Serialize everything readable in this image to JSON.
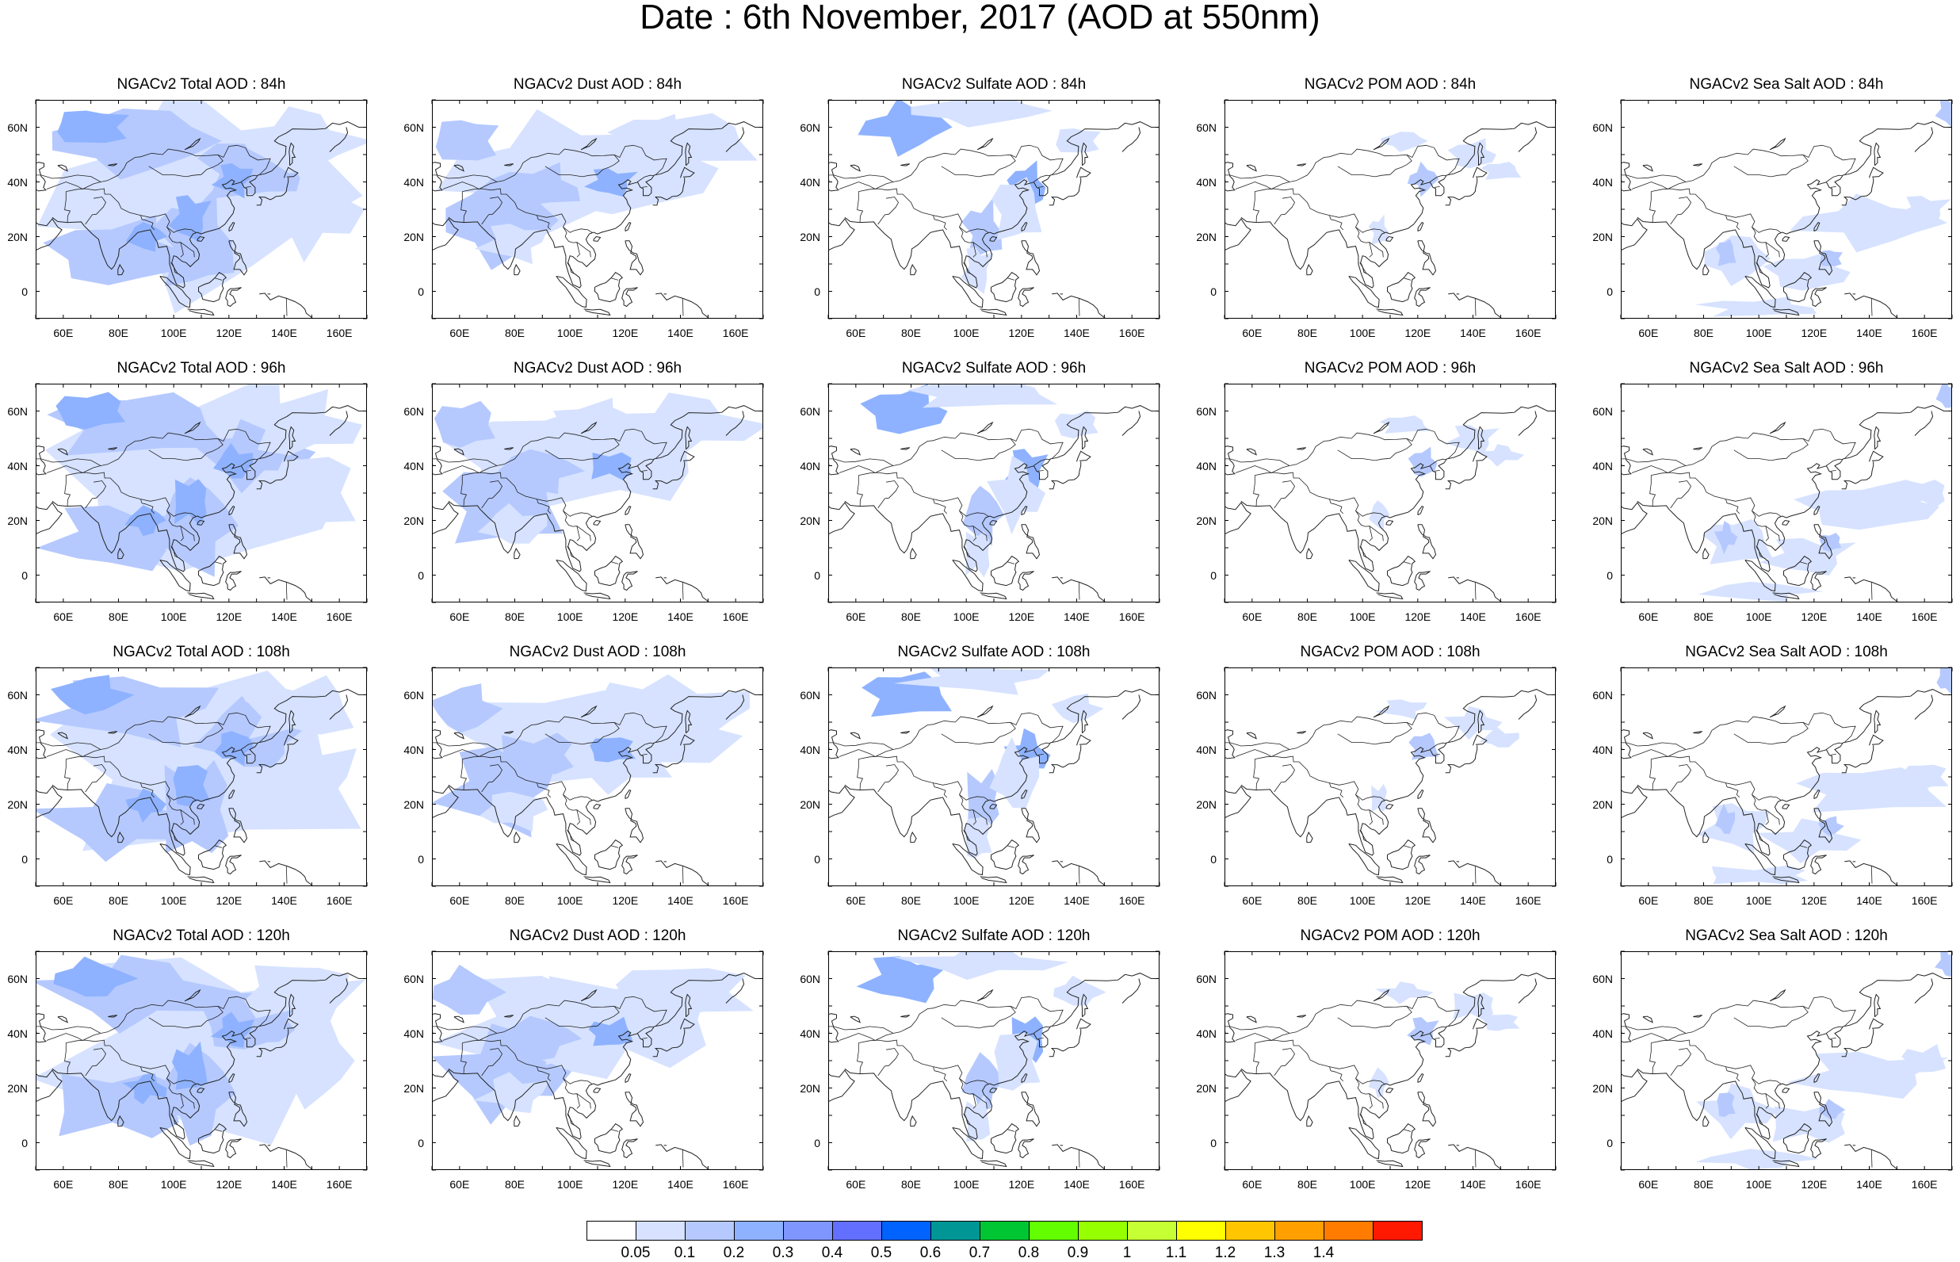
{
  "title": "Date : 6th November, 2017 (AOD at 550nm)",
  "rows": [
    {
      "panels": [
        {
          "title": "NGACv2 Total AOD : 84h",
          "species": "total"
        },
        {
          "title": "NGACv2 Dust AOD : 84h",
          "species": "dust"
        },
        {
          "title": "NGACv2 Sulfate AOD : 84h",
          "species": "sulfate"
        },
        {
          "title": "NGACv2 POM AOD : 84h",
          "species": "pom"
        },
        {
          "title": "NGACv2 Sea Salt AOD : 84h",
          "species": "seasalt"
        }
      ]
    },
    {
      "panels": [
        {
          "title": "NGACv2 Total AOD : 96h",
          "species": "total"
        },
        {
          "title": "NGACv2 Dust AOD : 96h",
          "species": "dust"
        },
        {
          "title": "NGACv2 Sulfate AOD : 96h",
          "species": "sulfate"
        },
        {
          "title": "NGACv2 POM AOD : 96h",
          "species": "pom"
        },
        {
          "title": "NGACv2 Sea Salt AOD : 96h",
          "species": "seasalt"
        }
      ]
    },
    {
      "panels": [
        {
          "title": "NGACv2 Total AOD : 108h",
          "species": "total"
        },
        {
          "title": "NGACv2 Dust AOD : 108h",
          "species": "dust"
        },
        {
          "title": "NGACv2 Sulfate AOD : 108h",
          "species": "sulfate"
        },
        {
          "title": "NGACv2 POM AOD : 108h",
          "species": "pom"
        },
        {
          "title": "NGACv2 Sea Salt AOD : 108h",
          "species": "seasalt"
        }
      ]
    },
    {
      "panels": [
        {
          "title": "NGACv2 Total AOD : 120h",
          "species": "total"
        },
        {
          "title": "NGACv2 Dust AOD : 120h",
          "species": "dust"
        },
        {
          "title": "NGACv2 Sulfate AOD : 120h",
          "species": "sulfate"
        },
        {
          "title": "NGACv2 POM AOD : 120h",
          "species": "pom"
        },
        {
          "title": "NGACv2 Sea Salt  AOD : 120h",
          "species": "seasalt"
        }
      ]
    }
  ],
  "axes": {
    "lon_range": [
      50,
      170
    ],
    "lat_range": [
      -10,
      70
    ],
    "lon_ticks": [
      "60E",
      "80E",
      "100E",
      "120E",
      "140E",
      "160E"
    ],
    "lon_values": [
      60,
      80,
      100,
      120,
      140,
      160
    ],
    "lat_ticks": [
      "60N",
      "40N",
      "20N",
      "0"
    ],
    "lat_values": [
      60,
      40,
      20,
      0
    ]
  },
  "colorbar": {
    "labels": [
      "0.05",
      "0.1",
      "0.2",
      "0.3",
      "0.4",
      "0.5",
      "0.6",
      "0.7",
      "0.8",
      "0.9",
      "1",
      "1.1",
      "1.2",
      "1.3",
      "1.4"
    ],
    "colors": [
      "#ffffff",
      "#d6e2ff",
      "#b5c9ff",
      "#8eb2ff",
      "#7f96ff",
      "#6370ff",
      "#0063ff",
      "#009696",
      "#00c633",
      "#63ff00",
      "#96ff00",
      "#c6ff33",
      "#ffff00",
      "#ffc600",
      "#ffa000",
      "#ff7c00",
      "#ff1900"
    ]
  }
}
